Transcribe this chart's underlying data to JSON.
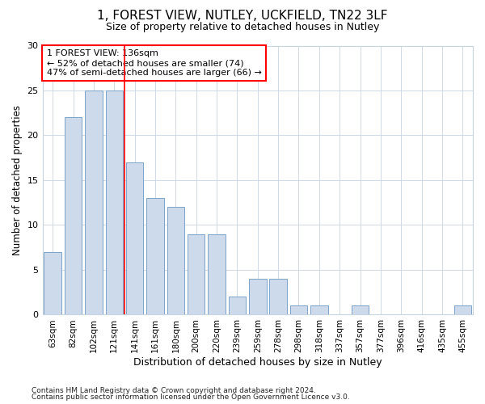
{
  "title": "1, FOREST VIEW, NUTLEY, UCKFIELD, TN22 3LF",
  "subtitle": "Size of property relative to detached houses in Nutley",
  "xlabel": "Distribution of detached houses by size in Nutley",
  "ylabel": "Number of detached properties",
  "categories": [
    "63sqm",
    "82sqm",
    "102sqm",
    "121sqm",
    "141sqm",
    "161sqm",
    "180sqm",
    "200sqm",
    "220sqm",
    "239sqm",
    "259sqm",
    "278sqm",
    "298sqm",
    "318sqm",
    "337sqm",
    "357sqm",
    "377sqm",
    "396sqm",
    "416sqm",
    "435sqm",
    "455sqm"
  ],
  "values": [
    7,
    22,
    25,
    25,
    17,
    13,
    12,
    9,
    9,
    2,
    4,
    4,
    1,
    1,
    0,
    1,
    0,
    0,
    0,
    0,
    1
  ],
  "bar_color": "#cddaeb",
  "bar_edge_color": "#7ba3c8",
  "marker_label": "1 FOREST VIEW: 136sqm",
  "annotation_line1": "← 52% of detached houses are smaller (74)",
  "annotation_line2": "47% of semi-detached houses are larger (66) →",
  "ylim": [
    0,
    30
  ],
  "yticks": [
    0,
    5,
    10,
    15,
    20,
    25,
    30
  ],
  "bg_color": "#ffffff",
  "plot_bg_color": "#ffffff",
  "grid_color": "#c8d4e0",
  "red_line_x": 3.5,
  "footer1": "Contains HM Land Registry data © Crown copyright and database right 2024.",
  "footer2": "Contains public sector information licensed under the Open Government Licence v3.0."
}
